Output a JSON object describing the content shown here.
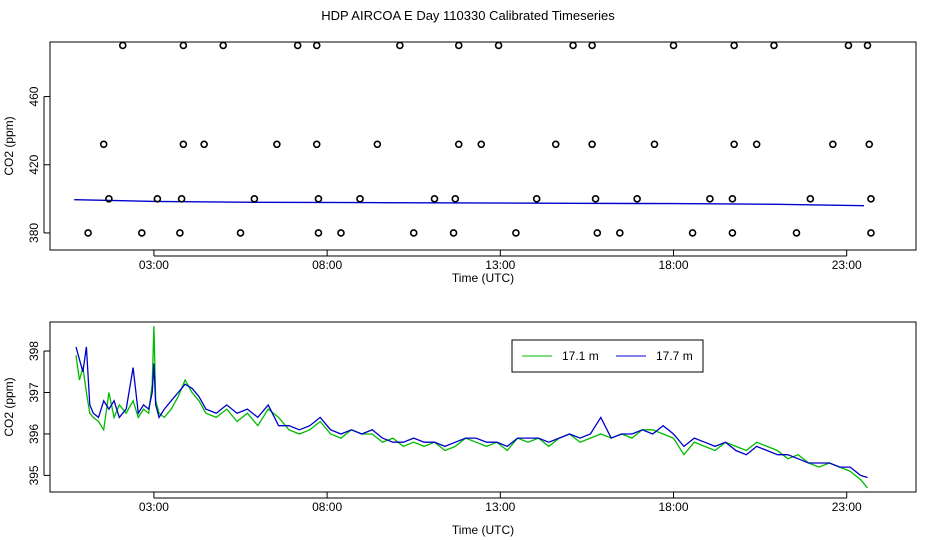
{
  "title": "HDP AIRCOA E  Day 110330  Calibrated Timeseries",
  "chart_data": [
    {
      "type": "scatter",
      "xlabel": "Time (UTC)",
      "ylabel": "CO2 (ppm)",
      "x_ticks": [
        3,
        8,
        13,
        18,
        23
      ],
      "x_tick_labels": [
        "03:00",
        "08:00",
        "13:00",
        "18:00",
        "23:00"
      ],
      "xlim": [
        0,
        25
      ],
      "y_ticks": [
        380,
        420,
        460
      ],
      "y_tick_labels": [
        "380",
        "420",
        "460"
      ],
      "ylim": [
        370,
        492
      ],
      "calibration_points": [
        [
          2.1,
          490
        ],
        [
          3.85,
          490
        ],
        [
          5.0,
          490
        ],
        [
          7.15,
          490
        ],
        [
          7.7,
          490
        ],
        [
          10.1,
          490
        ],
        [
          11.8,
          490
        ],
        [
          12.95,
          490
        ],
        [
          15.1,
          490
        ],
        [
          15.65,
          490
        ],
        [
          18.0,
          490
        ],
        [
          19.75,
          490
        ],
        [
          20.9,
          490
        ],
        [
          23.05,
          490
        ],
        [
          23.6,
          490
        ],
        [
          1.55,
          432
        ],
        [
          3.85,
          432
        ],
        [
          4.45,
          432
        ],
        [
          6.55,
          432
        ],
        [
          7.7,
          432
        ],
        [
          9.45,
          432
        ],
        [
          11.8,
          432
        ],
        [
          12.45,
          432
        ],
        [
          14.6,
          432
        ],
        [
          15.65,
          432
        ],
        [
          17.45,
          432
        ],
        [
          19.75,
          432
        ],
        [
          20.4,
          432
        ],
        [
          22.6,
          432
        ],
        [
          23.65,
          432
        ],
        [
          1.7,
          400
        ],
        [
          3.1,
          400
        ],
        [
          3.8,
          400
        ],
        [
          5.9,
          400
        ],
        [
          7.75,
          400
        ],
        [
          8.95,
          400
        ],
        [
          11.1,
          400
        ],
        [
          11.7,
          400
        ],
        [
          14.05,
          400
        ],
        [
          15.75,
          400
        ],
        [
          16.95,
          400
        ],
        [
          19.05,
          400
        ],
        [
          19.7,
          400
        ],
        [
          21.95,
          400
        ],
        [
          23.7,
          400
        ],
        [
          1.1,
          380
        ],
        [
          2.65,
          380
        ],
        [
          3.75,
          380
        ],
        [
          5.5,
          380
        ],
        [
          7.75,
          380
        ],
        [
          8.4,
          380
        ],
        [
          10.5,
          380
        ],
        [
          11.65,
          380
        ],
        [
          13.45,
          380
        ],
        [
          15.8,
          380
        ],
        [
          16.45,
          380
        ],
        [
          18.55,
          380
        ],
        [
          19.7,
          380
        ],
        [
          21.55,
          380
        ],
        [
          23.7,
          380
        ]
      ],
      "baseline_series": {
        "color": "#0000cc",
        "x": [
          0.7,
          3,
          6,
          9,
          12,
          15,
          18,
          21,
          23.5
        ],
        "y": [
          399.5,
          398.5,
          398.0,
          397.8,
          397.6,
          397.4,
          397.2,
          396.8,
          396.0
        ]
      },
      "marker_color": "#000000"
    },
    {
      "type": "line",
      "xlabel": "Time (UTC)",
      "ylabel": "CO2 (ppm)",
      "x_ticks": [
        3,
        8,
        13,
        18,
        23
      ],
      "x_tick_labels": [
        "03:00",
        "08:00",
        "13:00",
        "18:00",
        "23:00"
      ],
      "xlim": [
        0,
        25
      ],
      "y_ticks": [
        395,
        396,
        397,
        398
      ],
      "y_tick_labels": [
        "395",
        "396",
        "397",
        "398"
      ],
      "ylim": [
        394.6,
        398.7
      ],
      "legend_position": "top-right",
      "series": [
        {
          "name": "17.1 m",
          "color": "#00bb00",
          "x": [
            0.75,
            0.85,
            0.95,
            1.05,
            1.15,
            1.25,
            1.4,
            1.55,
            1.7,
            1.85,
            2.0,
            2.2,
            2.4,
            2.55,
            2.7,
            2.85,
            2.95,
            3.0,
            3.05,
            3.15,
            3.3,
            3.5,
            3.7,
            3.9,
            4.1,
            4.3,
            4.5,
            4.8,
            5.1,
            5.4,
            5.7,
            6.0,
            6.3,
            6.6,
            6.9,
            7.2,
            7.5,
            7.8,
            8.1,
            8.4,
            8.7,
            9.0,
            9.3,
            9.6,
            9.9,
            10.2,
            10.5,
            10.8,
            11.1,
            11.4,
            11.7,
            12.0,
            12.3,
            12.6,
            12.9,
            13.2,
            13.5,
            13.8,
            14.1,
            14.4,
            14.7,
            15.0,
            15.3,
            15.6,
            15.9,
            16.2,
            16.5,
            16.8,
            17.1,
            17.4,
            17.7,
            18.0,
            18.3,
            18.6,
            18.9,
            19.2,
            19.5,
            19.8,
            20.1,
            20.4,
            20.7,
            21.0,
            21.3,
            21.6,
            21.9,
            22.2,
            22.5,
            22.8,
            23.1,
            23.4,
            23.6
          ],
          "y": [
            397.9,
            397.3,
            397.6,
            397.0,
            396.5,
            396.4,
            396.3,
            396.1,
            397.0,
            396.4,
            396.7,
            396.5,
            396.8,
            396.4,
            396.6,
            396.5,
            397.2,
            398.6,
            396.8,
            396.5,
            396.4,
            396.6,
            396.9,
            397.3,
            397.0,
            396.8,
            396.5,
            396.4,
            396.6,
            396.3,
            396.5,
            396.2,
            396.6,
            396.4,
            396.1,
            396.0,
            396.1,
            396.3,
            396.0,
            395.9,
            396.1,
            396.0,
            396.0,
            395.8,
            395.9,
            395.7,
            395.8,
            395.7,
            395.8,
            395.6,
            395.7,
            395.9,
            395.8,
            395.7,
            395.8,
            395.6,
            395.9,
            395.8,
            395.9,
            395.7,
            395.9,
            396.0,
            395.8,
            395.9,
            396.0,
            395.9,
            396.0,
            395.9,
            396.1,
            396.1,
            396.0,
            395.9,
            395.5,
            395.8,
            395.7,
            395.6,
            395.8,
            395.7,
            395.6,
            395.8,
            395.7,
            395.6,
            395.4,
            395.5,
            395.3,
            395.2,
            395.3,
            395.2,
            395.1,
            394.9,
            394.7
          ]
        },
        {
          "name": "17.7 m",
          "color": "#0000cc",
          "x": [
            0.75,
            0.85,
            0.95,
            1.05,
            1.15,
            1.25,
            1.4,
            1.55,
            1.7,
            1.85,
            2.0,
            2.2,
            2.4,
            2.55,
            2.7,
            2.85,
            2.95,
            3.0,
            3.05,
            3.15,
            3.3,
            3.5,
            3.7,
            3.9,
            4.1,
            4.3,
            4.5,
            4.8,
            5.1,
            5.4,
            5.7,
            6.0,
            6.3,
            6.6,
            6.9,
            7.2,
            7.5,
            7.8,
            8.1,
            8.4,
            8.7,
            9.0,
            9.3,
            9.6,
            9.9,
            10.2,
            10.5,
            10.8,
            11.1,
            11.4,
            11.7,
            12.0,
            12.3,
            12.6,
            12.9,
            13.2,
            13.5,
            13.8,
            14.1,
            14.4,
            14.7,
            15.0,
            15.3,
            15.6,
            15.9,
            16.2,
            16.5,
            16.8,
            17.1,
            17.4,
            17.7,
            18.0,
            18.3,
            18.6,
            18.9,
            19.2,
            19.5,
            19.8,
            20.1,
            20.4,
            20.7,
            21.0,
            21.3,
            21.6,
            21.9,
            22.2,
            22.5,
            22.8,
            23.1,
            23.4,
            23.6
          ],
          "y": [
            398.1,
            397.8,
            397.5,
            398.1,
            396.7,
            396.5,
            396.4,
            396.8,
            396.6,
            396.8,
            396.4,
            396.6,
            397.6,
            396.5,
            396.7,
            396.6,
            397.0,
            397.7,
            396.7,
            396.4,
            396.6,
            396.8,
            397.0,
            397.2,
            397.1,
            396.9,
            396.6,
            396.5,
            396.7,
            396.5,
            396.6,
            396.4,
            396.7,
            396.2,
            396.2,
            396.1,
            396.2,
            396.4,
            396.1,
            396.0,
            396.1,
            396.0,
            396.1,
            395.9,
            395.8,
            395.8,
            395.9,
            395.8,
            395.8,
            395.7,
            395.8,
            395.9,
            395.9,
            395.8,
            395.8,
            395.7,
            395.9,
            395.9,
            395.9,
            395.8,
            395.9,
            396.0,
            395.9,
            396.0,
            396.4,
            395.9,
            396.0,
            396.0,
            396.1,
            396.0,
            396.2,
            396.0,
            395.7,
            395.9,
            395.8,
            395.7,
            395.8,
            395.6,
            395.5,
            395.7,
            395.6,
            395.5,
            395.5,
            395.4,
            395.3,
            395.3,
            395.3,
            395.2,
            395.2,
            395.0,
            394.95
          ]
        }
      ]
    }
  ]
}
